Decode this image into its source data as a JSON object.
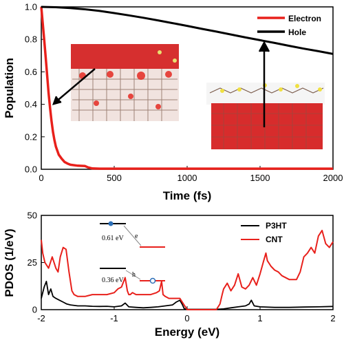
{
  "chart_data": [
    {
      "type": "line",
      "xlabel": "Time (fs)",
      "ylabel": "Population",
      "xlim": [
        0,
        2000
      ],
      "ylim": [
        0,
        1.0
      ],
      "x_ticks": [
        "0",
        "500",
        "1000",
        "1500",
        "2000"
      ],
      "y_ticks": [
        "0.0",
        "0.2",
        "0.4",
        "0.6",
        "0.8",
        "1.0"
      ],
      "legend_position": "top-right",
      "series": [
        {
          "name": "Electron",
          "color": "#e8201b",
          "x": [
            0,
            10,
            20,
            30,
            40,
            50,
            60,
            70,
            80,
            90,
            100,
            120,
            140,
            160,
            180,
            200,
            250,
            300,
            320,
            350,
            400,
            500,
            1000,
            1500,
            2000
          ],
          "y": [
            1.0,
            0.9,
            0.8,
            0.69,
            0.58,
            0.47,
            0.38,
            0.3,
            0.23,
            0.18,
            0.14,
            0.09,
            0.065,
            0.045,
            0.035,
            0.028,
            0.022,
            0.02,
            0.012,
            0.005,
            0.004,
            0.004,
            0.004,
            0.004,
            0.004
          ]
        },
        {
          "name": "Hole",
          "color": "#000000",
          "x": [
            0,
            100,
            200,
            300,
            400,
            500,
            600,
            700,
            800,
            900,
            1000,
            1100,
            1200,
            1300,
            1400,
            1500,
            1600,
            1700,
            1800,
            1900,
            2000
          ],
          "y": [
            1.0,
            0.998,
            0.993,
            0.985,
            0.975,
            0.962,
            0.948,
            0.933,
            0.917,
            0.9,
            0.883,
            0.865,
            0.848,
            0.83,
            0.812,
            0.795,
            0.778,
            0.76,
            0.743,
            0.727,
            0.71
          ]
        }
      ]
    },
    {
      "type": "line",
      "xlabel": "Energy (eV)",
      "ylabel": "PDOS (1/eV)",
      "xlim": [
        -2,
        2
      ],
      "ylim": [
        0,
        50
      ],
      "x_ticks": [
        "-2",
        "-1",
        "0",
        "1",
        "2"
      ],
      "y_ticks": [
        "0",
        "25",
        "50"
      ],
      "legend_position": "top-right",
      "series": [
        {
          "name": "P3HT",
          "color": "#000000",
          "x": [
            -2.0,
            -1.96,
            -1.93,
            -1.9,
            -1.87,
            -1.84,
            -1.8,
            -1.75,
            -1.7,
            -1.65,
            -1.6,
            -1.5,
            -1.4,
            -1.3,
            -1.2,
            -1.1,
            -1.0,
            -0.9,
            -0.85,
            -0.8,
            -0.7,
            -0.6,
            -0.5,
            -0.4,
            -0.3,
            -0.2,
            -0.15,
            -0.1,
            -0.07,
            -0.04,
            0.0,
            0.2,
            0.4,
            0.5,
            0.6,
            0.7,
            0.8,
            0.85,
            0.88,
            0.92,
            1.0,
            1.2,
            1.4,
            1.6,
            1.8,
            2.0
          ],
          "y": [
            6,
            12,
            15,
            8,
            11,
            7,
            6,
            5,
            4,
            3,
            2.5,
            2,
            2,
            1.8,
            1.7,
            1.8,
            1.5,
            2,
            3.5,
            1.5,
            1.2,
            1,
            1.2,
            1.5,
            2,
            2.5,
            4,
            5,
            3,
            0.5,
            0.2,
            0.2,
            0.2,
            0.4,
            1,
            1.5,
            2,
            3,
            5,
            2,
            1.5,
            1.2,
            1.2,
            1.4,
            1.5,
            1.7
          ]
        },
        {
          "name": "CNT",
          "color": "#e8201b",
          "x": [
            -2.0,
            -1.98,
            -1.95,
            -1.9,
            -1.85,
            -1.8,
            -1.77,
            -1.74,
            -1.7,
            -1.66,
            -1.62,
            -1.58,
            -1.55,
            -1.5,
            -1.4,
            -1.3,
            -1.2,
            -1.1,
            -1.0,
            -0.95,
            -0.9,
            -0.85,
            -0.82,
            -0.8,
            -0.78,
            -0.75,
            -0.7,
            -0.6,
            -0.5,
            -0.42,
            -0.38,
            -0.35,
            -0.33,
            -0.3,
            -0.25,
            -0.2,
            -0.15,
            -0.1,
            0.0,
            0.2,
            0.4,
            0.45,
            0.48,
            0.5,
            0.55,
            0.6,
            0.65,
            0.7,
            0.75,
            0.8,
            0.85,
            0.9,
            0.95,
            1.0,
            1.05,
            1.08,
            1.1,
            1.15,
            1.2,
            1.25,
            1.3,
            1.4,
            1.5,
            1.55,
            1.6,
            1.65,
            1.7,
            1.75,
            1.8,
            1.85,
            1.9,
            1.95,
            2.0
          ],
          "y": [
            37,
            30,
            25,
            22,
            28,
            22,
            20,
            28,
            33,
            32,
            20,
            10,
            8,
            7,
            7,
            8,
            8,
            8,
            9,
            11,
            12,
            17,
            10,
            8,
            8,
            9,
            8,
            8,
            8,
            9,
            10,
            15,
            8,
            7,
            6,
            6,
            6,
            6,
            0,
            0,
            0,
            3,
            8,
            11,
            14,
            10,
            13,
            19,
            12,
            11,
            13,
            17,
            13,
            19,
            26,
            30,
            26,
            23,
            21,
            20,
            18,
            16,
            16,
            20,
            28,
            30,
            33,
            30,
            39,
            42,
            35,
            33,
            36
          ]
        }
      ],
      "inset": {
        "top_label": "0.61 eV",
        "top_letter": "e",
        "bottom_label": "0.36 eV",
        "bottom_letter": "h"
      }
    }
  ]
}
